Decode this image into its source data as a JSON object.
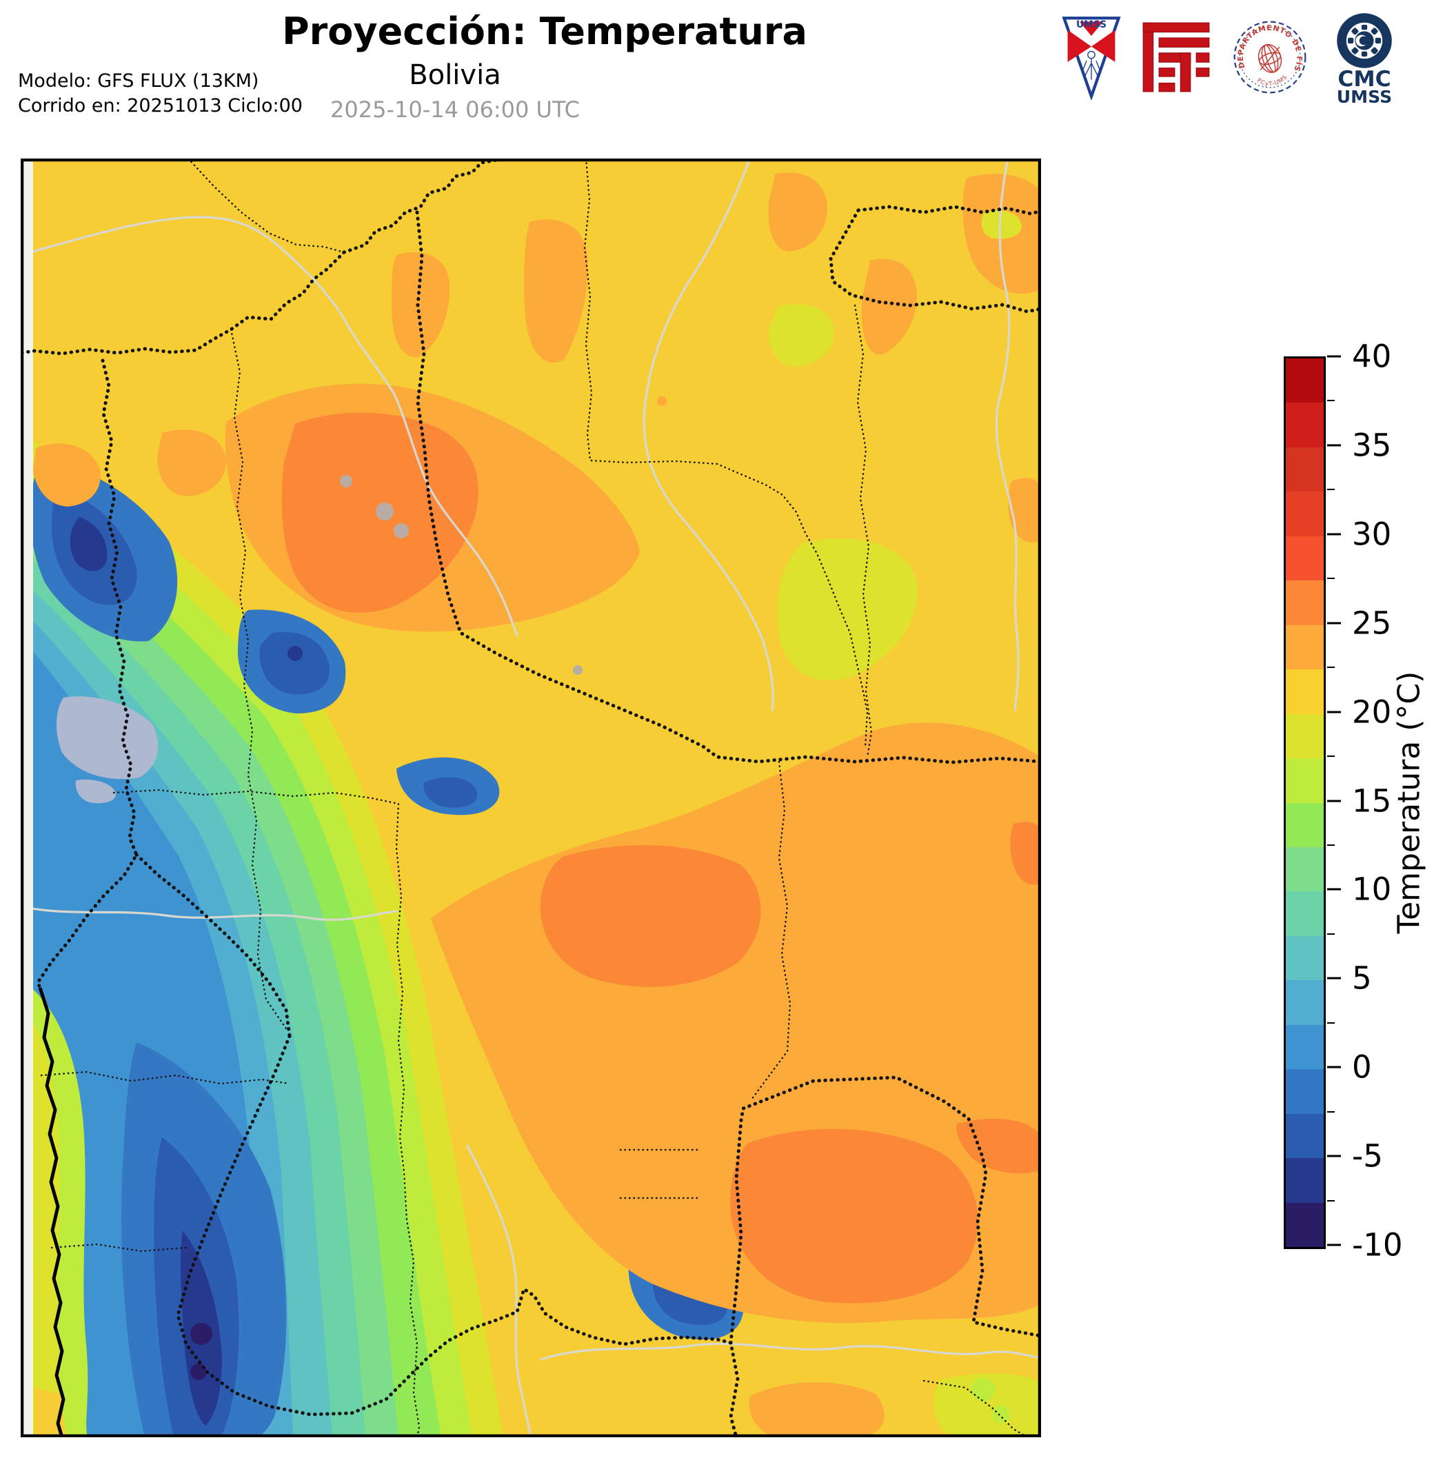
{
  "header": {
    "title": "Proyección: Temperatura",
    "subtitle": "Bolivia",
    "datetime": "2025-10-14 06:00 UTC",
    "model_line1": "Modelo: GFS FLUX (13KM)",
    "model_line2": "Corrido en: 20251013 Ciclo:00"
  },
  "logos": {
    "umss_shield_text": "UMSS",
    "cmc_top": "CMC",
    "cmc_bottom": "UMSS",
    "stamp_arc_text": "DEPARTAMENTO DE FÍSICA",
    "stamp_bottom_text": "FCyT-UMSS"
  },
  "colorbar": {
    "label": "Temperatura (°C)",
    "min": -10,
    "max": 40,
    "major_tick_step": 5,
    "minor_tick_step": 2.5,
    "major_ticks": [
      40,
      35,
      30,
      25,
      20,
      15,
      10,
      5,
      0,
      -5,
      -10
    ],
    "colors_top_to_bottom": [
      "#b40b0e",
      "#d21e1b",
      "#d53520",
      "#e63f26",
      "#f5512d",
      "#fb8836",
      "#fcab3b",
      "#f8d02f",
      "#dfe22c",
      "#bfec3c",
      "#93e856",
      "#7edd8b",
      "#6cd3a8",
      "#5fc3c2",
      "#51aed1",
      "#3f93d1",
      "#3478c4",
      "#2c5cb0",
      "#253a8e",
      "#2a1c66"
    ]
  },
  "map": {
    "region": "Bolivia",
    "base_color": "#f7cd36",
    "dominant_band_c": "20-25",
    "warm_band_c_east": "25-30",
    "cold_core_c_andes": "-10 to 5",
    "lake_color": "#aeb8d0",
    "river_color": "#d8d8d0",
    "border_color": "#111111"
  }
}
